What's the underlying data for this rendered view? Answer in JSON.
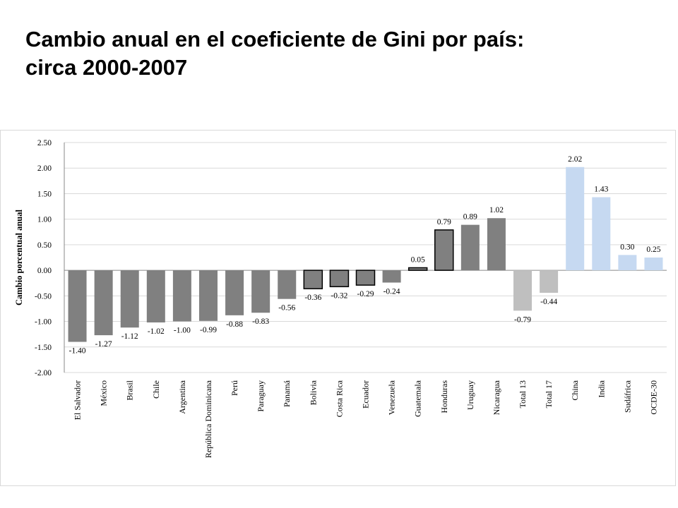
{
  "title_line1": "Cambio anual en el coeficiente de Gini por país:",
  "title_line2": "circa 2000-2007",
  "chart_data": {
    "type": "bar",
    "ylabel": "Cambio porcentual anual",
    "xlabel": "",
    "ylim": [
      -2.0,
      2.5
    ],
    "yticks": [
      "2.50",
      "2.00",
      "1.50",
      "1.00",
      "0.50",
      "0.00",
      "-0.50",
      "-1.00",
      "-1.50",
      "-2.00"
    ],
    "grid": true,
    "legend": "none",
    "categories": [
      "El Salvador",
      "México",
      "Brasil",
      "Chile",
      "Argentina",
      "República Dominicana",
      "Perú",
      "Paraguay",
      "Panamá",
      "Bolivia",
      "Costa Rica",
      "Ecuador",
      "Venezuela",
      "Guatemala",
      "Honduras",
      "Uruguay",
      "Nicaragua",
      "Total 13",
      "Total 17",
      "China",
      "India",
      "Sudáfrica",
      "OCDE-30"
    ],
    "values": [
      -1.4,
      -1.27,
      -1.12,
      -1.02,
      -1.0,
      -0.99,
      -0.88,
      -0.83,
      -0.56,
      -0.36,
      -0.32,
      -0.29,
      -0.24,
      0.05,
      0.79,
      0.89,
      1.02,
      -0.79,
      -0.44,
      2.02,
      1.43,
      0.3,
      0.25
    ],
    "labels": [
      "-1.40",
      "-1.27",
      "-1.12",
      "-1.02",
      "-1.00",
      "-0.99",
      "-0.88",
      "-0.83",
      "-0.56",
      "-0.36",
      "-0.32",
      "-0.29",
      "-0.24",
      "0.05",
      "0.79",
      "0.89",
      "1.02",
      "-0.79",
      "-0.44",
      "2.02",
      "1.43",
      "0.30",
      "0.25"
    ],
    "bar_colors": [
      "#808080",
      "#808080",
      "#808080",
      "#808080",
      "#808080",
      "#808080",
      "#808080",
      "#808080",
      "#808080",
      "#808080",
      "#808080",
      "#808080",
      "#808080",
      "#808080",
      "#808080",
      "#808080",
      "#808080",
      "#bfbfbf",
      "#bfbfbf",
      "#c6d9f1",
      "#c6d9f1",
      "#c6d9f1",
      "#c6d9f1"
    ],
    "outlined": [
      false,
      false,
      false,
      false,
      false,
      false,
      false,
      false,
      false,
      true,
      true,
      true,
      false,
      true,
      true,
      false,
      false,
      false,
      false,
      false,
      false,
      false,
      false
    ],
    "colors": {
      "gridline": "#d9d9d9",
      "axis": "#888888",
      "outline": "#000000"
    }
  }
}
